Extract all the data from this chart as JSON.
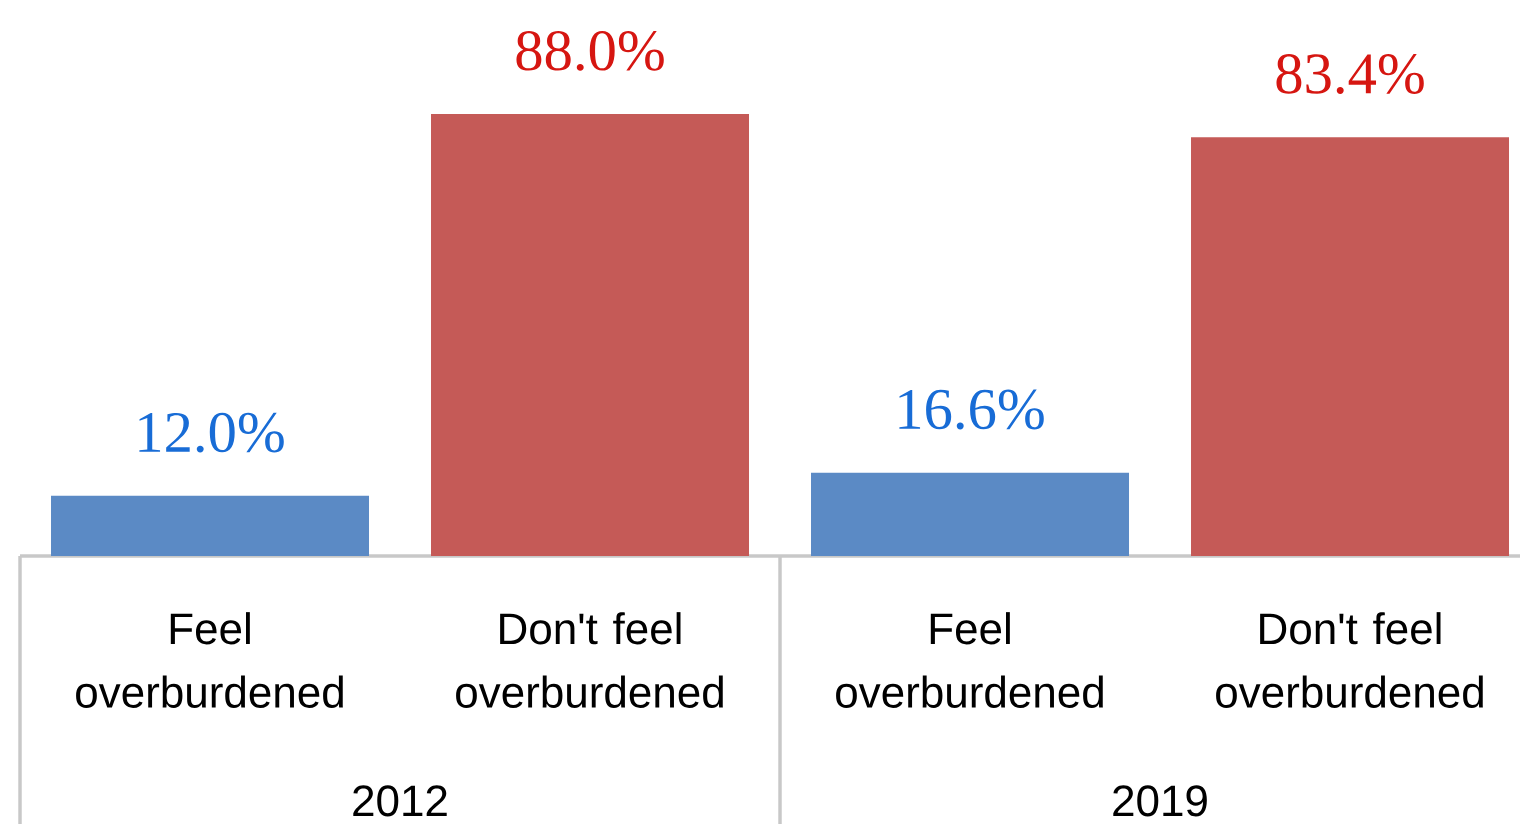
{
  "chart_data": {
    "type": "bar",
    "categories": [
      "2012",
      "2019"
    ],
    "series": [
      {
        "name": "Feel overburdened",
        "color": "#5b8ac5",
        "values": [
          12.0,
          16.6
        ],
        "value_labels": [
          "12.0%",
          "16.6%"
        ]
      },
      {
        "name": "Don't feel overburdened",
        "color": "#c55a57",
        "values": [
          88.0,
          83.4
        ],
        "value_labels": [
          "88.0%",
          "83.4%"
        ]
      }
    ]
  }
}
